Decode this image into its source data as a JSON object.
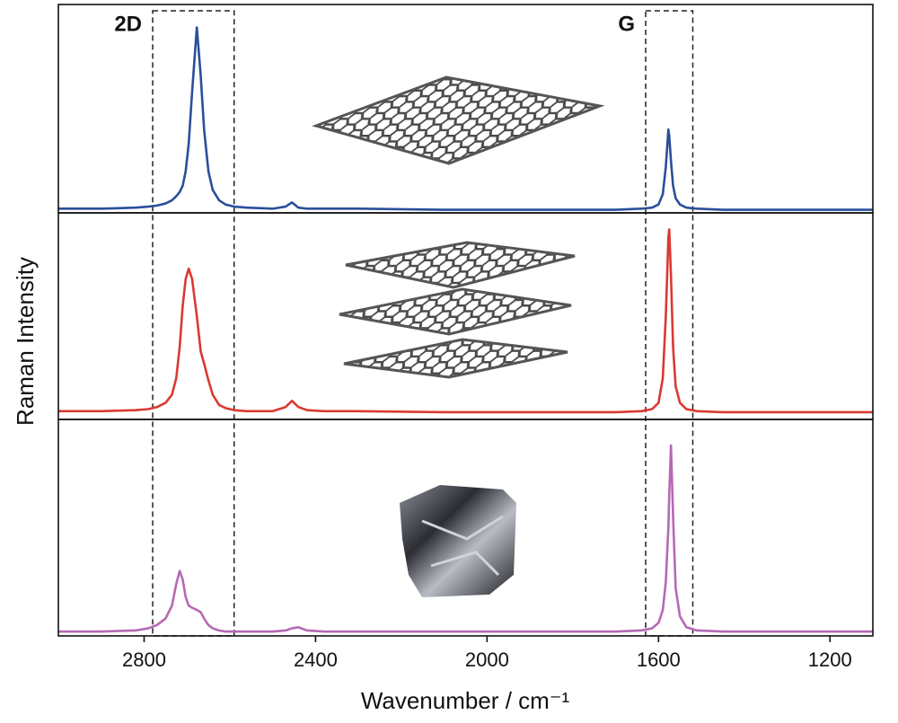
{
  "chart_data": {
    "type": "line",
    "xlabel": "Wavenumber / cm⁻¹",
    "ylabel": "Raman Intensity",
    "xlim": [
      3000,
      1100
    ],
    "xticks": [
      2800,
      2400,
      2000,
      1600,
      1200
    ],
    "ylim": [
      0,
      1
    ],
    "x": [
      3000,
      2900,
      2820,
      2790,
      2770,
      2750,
      2735,
      2725,
      2717,
      2710,
      2703,
      2696,
      2688,
      2677,
      2668,
      2660,
      2650,
      2640,
      2625,
      2610,
      2590,
      2560,
      2500,
      2470,
      2455,
      2440,
      2420,
      2380,
      2300,
      2100,
      1900,
      1700,
      1640,
      1615,
      1600,
      1590,
      1583,
      1577,
      1575,
      1571,
      1566,
      1560,
      1550,
      1535,
      1510,
      1450,
      1300,
      1100
    ],
    "series": [
      {
        "color": "#2b4f9a",
        "values": [
          0.02,
          0.02,
          0.025,
          0.03,
          0.035,
          0.045,
          0.06,
          0.08,
          0.1,
          0.13,
          0.2,
          0.33,
          0.58,
          0.89,
          0.66,
          0.4,
          0.2,
          0.11,
          0.06,
          0.04,
          0.03,
          0.025,
          0.02,
          0.03,
          0.05,
          0.025,
          0.02,
          0.02,
          0.02,
          0.015,
          0.015,
          0.015,
          0.02,
          0.025,
          0.04,
          0.09,
          0.22,
          0.4,
          0.37,
          0.25,
          0.13,
          0.07,
          0.04,
          0.025,
          0.02,
          0.015,
          0.015,
          0.015
        ]
      },
      {
        "color": "#d93a32",
        "values": [
          0.04,
          0.04,
          0.045,
          0.05,
          0.06,
          0.08,
          0.12,
          0.2,
          0.35,
          0.55,
          0.68,
          0.73,
          0.68,
          0.5,
          0.33,
          0.27,
          0.19,
          0.12,
          0.07,
          0.055,
          0.045,
          0.04,
          0.04,
          0.06,
          0.09,
          0.06,
          0.045,
          0.04,
          0.04,
          0.035,
          0.035,
          0.035,
          0.04,
          0.05,
          0.08,
          0.2,
          0.5,
          0.88,
          0.92,
          0.7,
          0.35,
          0.16,
          0.08,
          0.05,
          0.04,
          0.035,
          0.035,
          0.035
        ]
      },
      {
        "color": "#b569b3",
        "values": [
          0.02,
          0.02,
          0.025,
          0.035,
          0.05,
          0.08,
          0.14,
          0.24,
          0.3,
          0.26,
          0.18,
          0.14,
          0.13,
          0.12,
          0.11,
          0.08,
          0.05,
          0.035,
          0.025,
          0.02,
          0.02,
          0.02,
          0.02,
          0.025,
          0.035,
          0.04,
          0.025,
          0.02,
          0.02,
          0.02,
          0.02,
          0.02,
          0.025,
          0.035,
          0.06,
          0.12,
          0.25,
          0.5,
          0.65,
          0.88,
          0.55,
          0.22,
          0.09,
          0.04,
          0.025,
          0.02,
          0.02,
          0.02
        ]
      }
    ],
    "regions": [
      {
        "label": "2D",
        "xlim": [
          2780,
          2590
        ]
      },
      {
        "label": "G",
        "xlim": [
          1630,
          1520
        ]
      }
    ]
  }
}
